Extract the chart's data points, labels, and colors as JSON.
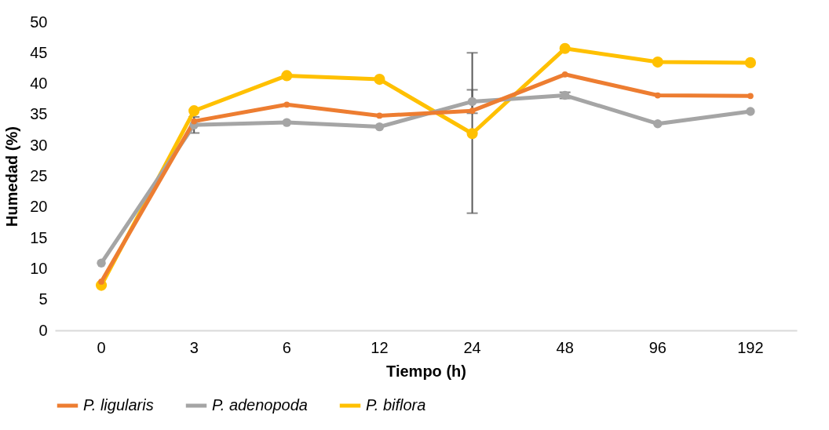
{
  "chart_data": {
    "type": "line",
    "xlabel": "Tiempo (h)",
    "ylabel": "Humedad (%)",
    "categories": [
      "0",
      "3",
      "6",
      "12",
      "24",
      "48",
      "96",
      "192"
    ],
    "series": [
      {
        "name": "P. ligularis",
        "color": "#ed7d31",
        "values": [
          7.9,
          33.9,
          36.6,
          34.8,
          35.6,
          41.5,
          38.1,
          38.0
        ]
      },
      {
        "name": "P. adenopoda",
        "color": "#a5a5a5",
        "values": [
          10.9,
          33.3,
          33.7,
          33.0,
          37.1,
          38.1,
          33.5,
          35.5
        ],
        "errors": [
          null,
          1.3,
          null,
          null,
          1.9,
          0.5,
          null,
          null
        ]
      },
      {
        "name": "P. biflora",
        "color": "#ffc000",
        "values": [
          7.3,
          35.6,
          41.3,
          40.7,
          31.9,
          45.7,
          43.5,
          43.4
        ],
        "errors": [
          null,
          null,
          null,
          null,
          [
            19,
            45
          ],
          null,
          null,
          null
        ]
      }
    ],
    "ylim": [
      0,
      50
    ],
    "yticks": [
      0,
      5,
      10,
      15,
      20,
      25,
      30,
      35,
      40,
      45,
      50
    ],
    "grid": false,
    "legend": "bottom",
    "marker": "circle",
    "line_style": "solid"
  }
}
